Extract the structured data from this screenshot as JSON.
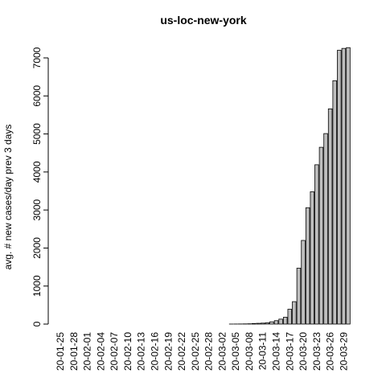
{
  "chart_data": {
    "type": "bar",
    "title": "us-loc-new-york",
    "ylabel": "avg. # new cases/day prev  3  days",
    "categories": [
      "20-01-25",
      null,
      null,
      "20-01-28",
      null,
      null,
      "20-02-01",
      null,
      null,
      "20-02-04",
      null,
      null,
      "20-02-07",
      null,
      null,
      "20-02-10",
      null,
      null,
      "20-02-13",
      null,
      null,
      "20-02-16",
      null,
      null,
      "20-02-19",
      null,
      null,
      "20-02-22",
      null,
      null,
      "20-02-25",
      null,
      null,
      "20-02-28",
      null,
      null,
      "20-03-02",
      null,
      null,
      "20-03-05",
      null,
      null,
      "20-03-08",
      null,
      null,
      "20-03-11",
      null,
      null,
      "20-03-14",
      null,
      null,
      "20-03-17",
      null,
      null,
      "20-03-20",
      null,
      null,
      "20-03-23",
      null,
      null,
      "20-03-26",
      null,
      null,
      "20-03-29",
      null
    ],
    "values": [
      0,
      0,
      0,
      0,
      0,
      0,
      0,
      0,
      0,
      0,
      0,
      0,
      0,
      0,
      0,
      0,
      0,
      0,
      0,
      0,
      0,
      0,
      0,
      0,
      0,
      0,
      0,
      0,
      0,
      0,
      0,
      0,
      0,
      0,
      0,
      0,
      0,
      0,
      1,
      2,
      3,
      5,
      8,
      15,
      20,
      25,
      35,
      60,
      90,
      130,
      180,
      390,
      590,
      1470,
      2200,
      3060,
      3480,
      4190,
      4650,
      5010,
      5660,
      6400,
      7200,
      7250,
      7270
    ],
    "color": "#bebebe",
    "ylim": [
      0,
      7000
    ],
    "yticks": [
      0,
      1000,
      2000,
      3000,
      4000,
      5000,
      6000,
      7000
    ]
  }
}
